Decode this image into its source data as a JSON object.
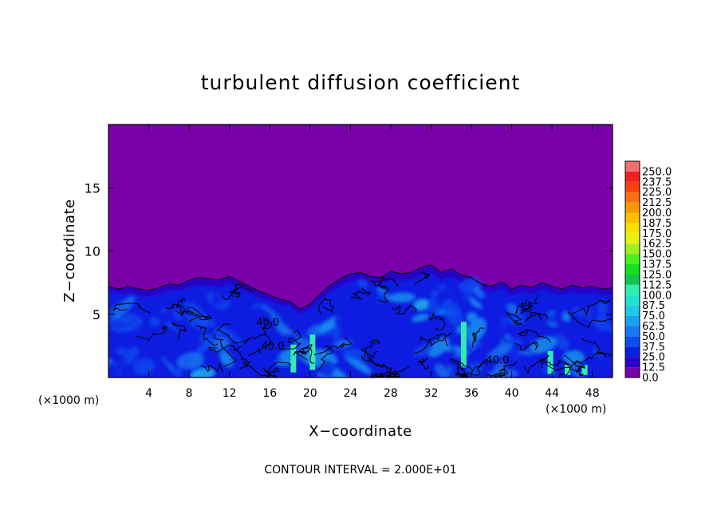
{
  "chart_data": {
    "type": "heatmap",
    "title": "turbulent diffusion coefficient",
    "xlabel": "X−coordinate",
    "ylabel": "Z−coordinate",
    "x_unit_left": "(×1000 m)",
    "x_unit_right": "(×1000 m)",
    "footer": "CONTOUR INTERVAL = 2.000E+01",
    "xlim": [
      0,
      50
    ],
    "ylim": [
      0,
      20
    ],
    "xticks": [
      4,
      8,
      12,
      16,
      20,
      24,
      28,
      32,
      36,
      40,
      44,
      48
    ],
    "yticks": [
      5,
      10,
      15
    ],
    "contour_labels": [
      {
        "text": "40.0",
        "x": 16.3,
        "z": 2.2
      },
      {
        "text": "40.0",
        "x": 15.8,
        "z": 4.1
      },
      {
        "text": "40.0",
        "x": 38.6,
        "z": 1.1
      }
    ],
    "colorbar": {
      "levels": [
        "0.0",
        "12.5",
        "25.0",
        "37.5",
        "50.0",
        "62.5",
        "75.0",
        "87.5",
        "100.0",
        "112.5",
        "125.0",
        "137.5",
        "150.0",
        "162.5",
        "175.0",
        "187.5",
        "200.0",
        "212.5",
        "225.0",
        "237.5",
        "250.0"
      ],
      "colors": [
        "#7a00aa",
        "#2a00c8",
        "#0a1ee0",
        "#0a4ef0",
        "#1a78f0",
        "#1aa0f0",
        "#20c8e8",
        "#20e0d0",
        "#30ecb0",
        "#10c850",
        "#10e020",
        "#48f020",
        "#a0f020",
        "#e8f010",
        "#f8e000",
        "#f8c000",
        "#f89800",
        "#f87010",
        "#f84010",
        "#f02020",
        "#f07070"
      ]
    },
    "top_boundary_km": [
      7.2,
      7.0,
      7.2,
      7.0,
      6.9,
      7.1,
      7.4,
      7.3,
      7.7,
      7.9,
      7.8,
      7.7,
      8.0,
      7.6,
      7.2,
      6.8,
      6.5,
      6.2,
      6.0,
      5.4,
      5.8,
      6.6,
      7.3,
      7.8,
      8.2,
      8.3,
      8.0,
      7.9,
      8.4,
      8.2,
      8.3,
      8.7,
      8.9,
      8.3,
      8.6,
      8.1,
      7.9,
      7.4,
      7.2,
      7.6,
      7.0,
      7.3,
      7.1,
      7.5,
      7.2,
      7.0,
      7.3,
      7.1,
      7.2,
      7.0,
      7.1
    ]
  }
}
